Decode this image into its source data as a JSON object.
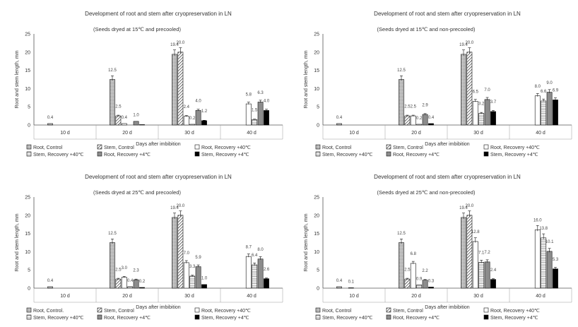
{
  "colors": {
    "root_control": "#b8b8b8",
    "stem_control": "#ffffff",
    "root_recovery_40": "#ffffff",
    "stem_recovery_40": "#ffffff",
    "root_recovery_4": "#8c8c8c",
    "stem_recovery_4": "#000000",
    "axis": "#555555",
    "grid": "#999999"
  },
  "chart_data": [
    {
      "type": "bar",
      "title": "Development of root and stem after cryopreservation in LN",
      "subtitle": "(Seeds dryed at 15℃ and precooled)",
      "xlabel": "Days after imbibition",
      "ylabel": "Root and stem length, mm",
      "ylim": [
        0,
        25
      ],
      "yticks": [
        "0",
        "5",
        "10",
        "15",
        "20",
        "25"
      ],
      "categories": [
        "10 d",
        "20 d",
        "30 d",
        "40 d"
      ],
      "series": [
        {
          "name": "Root, Control",
          "pattern": "dots",
          "values": [
            0.4,
            12.5,
            19.4,
            null
          ],
          "labels": [
            "0.4",
            "12.5",
            "19.4",
            ""
          ]
        },
        {
          "name": "Stem, Control",
          "pattern": "hatch",
          "values": [
            null,
            2.5,
            20.0,
            null
          ],
          "labels": [
            "",
            "2.5",
            "20.0",
            ""
          ]
        },
        {
          "name": "Root, Recovery +40℃",
          "pattern": "white",
          "values": [
            null,
            0.4,
            2.4,
            5.8
          ],
          "labels": [
            "",
            "0.4",
            "2.4",
            "5.8"
          ]
        },
        {
          "name": "Stem,  Recovery +40℃",
          "pattern": "lines",
          "values": [
            null,
            null,
            0.2,
            1.5
          ],
          "labels": [
            "",
            "",
            "0.2",
            "1.5"
          ]
        },
        {
          "name": "Root, Recovery +4℃",
          "pattern": "gray",
          "values": [
            null,
            1.0,
            4.0,
            6.3
          ],
          "labels": [
            "",
            "1.0",
            "4.0",
            "6.3"
          ]
        },
        {
          "name": "Stem,  Recovery +4℃",
          "pattern": "black",
          "values": [
            null,
            0.1,
            1.2,
            4.0
          ],
          "labels": [
            "",
            "",
            "1.2",
            "4.0"
          ]
        }
      ]
    },
    {
      "type": "bar",
      "title": "Development of root and stem after cryopreservation in LN",
      "subtitle": "(Seeds dryed at 15℃ and non-precooled)",
      "xlabel": "Days after imbibition",
      "ylabel": "Root and stem length, mm",
      "ylim": [
        0,
        25
      ],
      "yticks": [
        "0",
        "5",
        "10",
        "15",
        "20",
        "25"
      ],
      "categories": [
        "10 d",
        "20 d",
        "30 d",
        "40 d"
      ],
      "series": [
        {
          "name": "Root, Control",
          "pattern": "dots",
          "values": [
            0.4,
            12.5,
            19.4,
            null
          ],
          "labels": [
            "0.4",
            "12.5",
            "19.4",
            ""
          ]
        },
        {
          "name": "Stem, Control",
          "pattern": "hatch",
          "values": [
            null,
            2.5,
            20.0,
            null
          ],
          "labels": [
            "",
            "2.5",
            "20.0",
            ""
          ]
        },
        {
          "name": "Root, Recovery +40℃",
          "pattern": "white",
          "values": [
            null,
            2.5,
            6.5,
            8.0
          ],
          "labels": [
            "",
            "2.5",
            "6.5",
            "8.0"
          ]
        },
        {
          "name": "Stem,  Recovery +40℃",
          "pattern": "lines",
          "values": [
            null,
            0.2,
            3.2,
            6.6
          ],
          "labels": [
            "",
            "0.2",
            "3.2",
            "6.6"
          ]
        },
        {
          "name": "Root, Recovery +4℃",
          "pattern": "gray",
          "values": [
            null,
            2.9,
            7.0,
            9.0
          ],
          "labels": [
            "",
            "2.9",
            "7.0",
            "9.0"
          ]
        },
        {
          "name": "Stem,  Recovery +4℃",
          "pattern": "black",
          "values": [
            null,
            0.4,
            3.7,
            6.9
          ],
          "labels": [
            "",
            "0.4",
            "3.7",
            "6.9"
          ]
        }
      ]
    },
    {
      "type": "bar",
      "title": "Development of root and stem after cryopreservation in LN",
      "subtitle": "(Seeds dryed at 25℃ and precooled)",
      "xlabel": "Days after imbibition",
      "ylabel": "Root and stem length, mm",
      "ylim": [
        0,
        25
      ],
      "yticks": [
        "0",
        "5",
        "10",
        "15",
        "20",
        "25"
      ],
      "categories": [
        "10 d",
        "20 d",
        "30 d",
        "40 d"
      ],
      "series": [
        {
          "name": "Root, Control.",
          "pattern": "dots",
          "values": [
            0.4,
            12.5,
            19.4,
            null
          ],
          "labels": [
            "0.4",
            "12.5",
            "19.4",
            ""
          ]
        },
        {
          "name": "Stem, Control",
          "pattern": "hatch",
          "values": [
            null,
            2.5,
            20.0,
            null
          ],
          "labels": [
            "",
            "2.5",
            "20.0",
            ""
          ]
        },
        {
          "name": "Root, Recovery +40℃",
          "pattern": "white",
          "values": [
            null,
            3.0,
            7.0,
            8.7
          ],
          "labels": [
            "",
            "3.0",
            "7.0",
            "8.7"
          ]
        },
        {
          "name": "Stem, Recovery +40℃",
          "pattern": "lines",
          "values": [
            null,
            0.4,
            3.3,
            6.4
          ],
          "labels": [
            "",
            "0.4",
            "3.3",
            "6.4"
          ]
        },
        {
          "name": "Root, Recovery +4℃",
          "pattern": "gray",
          "values": [
            null,
            2.3,
            5.9,
            8.0
          ],
          "labels": [
            "",
            "2.3",
            "5.9",
            "8.0"
          ]
        },
        {
          "name": "Stem, Recovery +4℃",
          "pattern": "black",
          "values": [
            null,
            0.2,
            1.0,
            2.6
          ],
          "labels": [
            "",
            "0.2",
            "1.0",
            "2.6"
          ]
        }
      ]
    },
    {
      "type": "bar",
      "title": "Development of root and stem after cryopreservation in LN",
      "subtitle": "(Seeds dryed at 25℃ and non-precooled)",
      "xlabel": "Days after imbibition",
      "ylabel": "Root and stem length, mm",
      "ylim": [
        0,
        25
      ],
      "yticks": [
        "0",
        "5",
        "10",
        "15",
        "20",
        "25"
      ],
      "categories": [
        "10 d",
        "20 d",
        "30 d",
        "40 d"
      ],
      "series": [
        {
          "name": "Root, Control",
          "pattern": "dots",
          "values": [
            0.4,
            12.5,
            19.4,
            null
          ],
          "labels": [
            "0.4",
            "12.5",
            "19.4",
            ""
          ]
        },
        {
          "name": "Stem, Control",
          "pattern": "hatch",
          "values": [
            null,
            2.5,
            20.0,
            null
          ],
          "labels": [
            "",
            "2.5",
            "20.0",
            ""
          ]
        },
        {
          "name": "Root, Recovery +40℃",
          "pattern": "white",
          "values": [
            0.1,
            6.8,
            12.8,
            16.0
          ],
          "labels": [
            "0.1",
            "6.8",
            "12.8",
            "16.0"
          ]
        },
        {
          "name": "Stem, Recovery +40℃",
          "pattern": "lines",
          "values": [
            null,
            0.9,
            7.1,
            13.8
          ],
          "labels": [
            "",
            "0.9",
            "7.1",
            "13.8"
          ]
        },
        {
          "name": "Root, Recovery +4℃",
          "pattern": "gray",
          "values": [
            null,
            2.2,
            7.2,
            10.1
          ],
          "labels": [
            "",
            "2.2",
            "7.2",
            "10.1"
          ]
        },
        {
          "name": "Stem, Recovery +4℃",
          "pattern": "black",
          "values": [
            null,
            0.3,
            2.4,
            5.3
          ],
          "labels": [
            "",
            "0.3",
            "2.4",
            "5.3"
          ]
        }
      ]
    }
  ]
}
